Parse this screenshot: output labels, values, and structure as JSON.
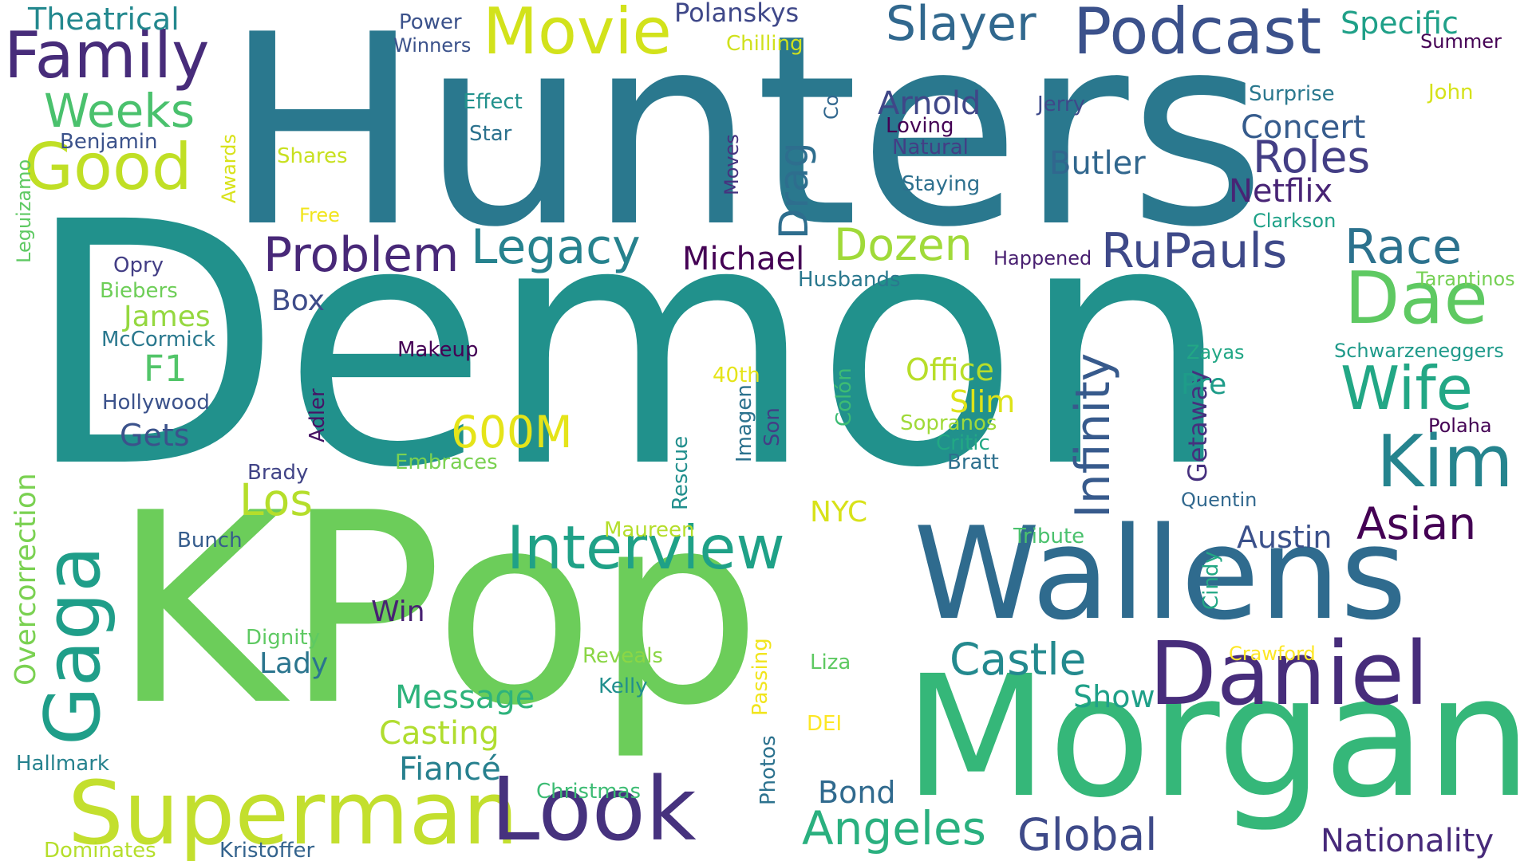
{
  "words": [
    {
      "text": "Hunters",
      "color": "#2a788e"
    },
    {
      "text": "Demon",
      "color": "#21918c"
    },
    {
      "text": "KPop",
      "color": "#6ccd5a"
    },
    {
      "text": "Morgan",
      "color": "#35b779"
    },
    {
      "text": "Wallens",
      "color": "#2f6b8e"
    },
    {
      "text": "Daniel",
      "color": "#472d7b"
    },
    {
      "text": "Superman",
      "color": "#c3df2e"
    },
    {
      "text": "Look",
      "color": "#46327e"
    },
    {
      "text": "Podcast",
      "color": "#3b518b"
    },
    {
      "text": "Movie",
      "color": "#d2e21b"
    },
    {
      "text": "Family",
      "color": "#472c7a"
    },
    {
      "text": "Good",
      "color": "#c0df25"
    },
    {
      "text": "Slayer",
      "color": "#31688e"
    },
    {
      "text": "Kim",
      "color": "#25848e"
    },
    {
      "text": "Dae",
      "color": "#5ec962"
    },
    {
      "text": "Interview",
      "color": "#1fa187"
    },
    {
      "text": "Legacy",
      "color": "#26828e"
    },
    {
      "text": "Problem",
      "color": "#482878"
    },
    {
      "text": "RuPauls",
      "color": "#3e4989"
    },
    {
      "text": "Race",
      "color": "#2c728e"
    },
    {
      "text": "Infinity",
      "color": "#375a8c"
    },
    {
      "text": "Wife",
      "color": "#22a785"
    },
    {
      "text": "Weeks",
      "color": "#4ac16d"
    },
    {
      "text": "Gaga",
      "color": "#1f9e89"
    },
    {
      "text": "Dozen",
      "color": "#a0da39"
    },
    {
      "text": "Asian",
      "color": "#440154"
    },
    {
      "text": "Castle",
      "color": "#23898e"
    },
    {
      "text": "Roles",
      "color": "#433e85"
    },
    {
      "text": "Angeles",
      "color": "#2ab07f"
    },
    {
      "text": "Global",
      "color": "#3e4a89"
    },
    {
      "text": "Los",
      "color": "#b5de2b"
    },
    {
      "text": "Drag",
      "color": "#2e6e8e"
    },
    {
      "text": "600M",
      "color": "#e5e419"
    },
    {
      "text": "Netflix",
      "color": "#482475"
    },
    {
      "text": "Michael",
      "color": "#440154"
    },
    {
      "text": "Specific",
      "color": "#1fa088"
    },
    {
      "text": "Concert",
      "color": "#365c8d"
    },
    {
      "text": "Butler",
      "color": "#31678e"
    },
    {
      "text": "Arnold",
      "color": "#3f4788"
    },
    {
      "text": "Nationality",
      "color": "#472a7a"
    },
    {
      "text": "Theatrical",
      "color": "#23888e"
    },
    {
      "text": "Message",
      "color": "#2eb37c"
    },
    {
      "text": "Casting",
      "color": "#b0dd2f"
    },
    {
      "text": "Fiancé",
      "color": "#27808e"
    },
    {
      "text": "Austin",
      "color": "#3b518b"
    },
    {
      "text": "Overcorrection",
      "color": "#7ad151"
    },
    {
      "text": "Getaway",
      "color": "#46307e"
    },
    {
      "text": "Bond",
      "color": "#306a8e"
    },
    {
      "text": "Office",
      "color": "#b8de29"
    },
    {
      "text": "Show",
      "color": "#1fa088"
    },
    {
      "text": "Gets",
      "color": "#3b528b"
    },
    {
      "text": "James",
      "color": "#95d840"
    },
    {
      "text": "F1",
      "color": "#52c569"
    },
    {
      "text": "Slim",
      "color": "#dde318"
    },
    {
      "text": "Box",
      "color": "#3e4c8a"
    },
    {
      "text": "Lady",
      "color": "#2b758e"
    },
    {
      "text": "Win",
      "color": "#482173"
    },
    {
      "text": "Pre",
      "color": "#1e9c89"
    },
    {
      "text": "NYC",
      "color": "#d8e219"
    },
    {
      "text": "Polanskys",
      "color": "#3f4889"
    },
    {
      "text": "Loving",
      "color": "#440154"
    },
    {
      "text": "Natural",
      "color": "#433e85"
    },
    {
      "text": "Jerry",
      "color": "#3e4989"
    },
    {
      "text": "Surprise",
      "color": "#2a788e"
    },
    {
      "text": "John",
      "color": "#d5e21a"
    },
    {
      "text": "Summer",
      "color": "#440154"
    },
    {
      "text": "Power",
      "color": "#3b528b"
    },
    {
      "text": "Winners",
      "color": "#3b528b"
    },
    {
      "text": "Chilling",
      "color": "#d0e11c"
    },
    {
      "text": "Effect",
      "color": "#21918c"
    },
    {
      "text": "Star",
      "color": "#2c728e"
    },
    {
      "text": "Benjamin",
      "color": "#3b528b"
    },
    {
      "text": "Shares",
      "color": "#c8e020"
    },
    {
      "text": "Free",
      "color": "#f1e51d"
    },
    {
      "text": "Awards",
      "color": "#d8e219"
    },
    {
      "text": "Leguizamo",
      "color": "#5ec962"
    },
    {
      "text": "Co",
      "color": "#31678e"
    },
    {
      "text": "Moves",
      "color": "#46337f"
    },
    {
      "text": "Staying",
      "color": "#2d708e"
    },
    {
      "text": "Clarkson",
      "color": "#1fa188"
    },
    {
      "text": "Happened",
      "color": "#481f70"
    },
    {
      "text": "Husbands",
      "color": "#2a788e"
    },
    {
      "text": "Tarantinos",
      "color": "#75d054"
    },
    {
      "text": "Schwarzeneggers",
      "color": "#1f9a8a"
    },
    {
      "text": "Zayas",
      "color": "#22a785"
    },
    {
      "text": "Polaha",
      "color": "#440154"
    },
    {
      "text": "Opry",
      "color": "#433e85"
    },
    {
      "text": "Biebers",
      "color": "#6ece58"
    },
    {
      "text": "McCormick",
      "color": "#2a788e"
    },
    {
      "text": "Hollywood",
      "color": "#3b528b"
    },
    {
      "text": "Makeup",
      "color": "#440154"
    },
    {
      "text": "40th",
      "color": "#e5e419"
    },
    {
      "text": "Adler",
      "color": "#471365"
    },
    {
      "text": "Imagen",
      "color": "#2c728e"
    },
    {
      "text": "Son",
      "color": "#433e85"
    },
    {
      "text": "Colón",
      "color": "#3dbc74"
    },
    {
      "text": "Rescue",
      "color": "#218f8d"
    },
    {
      "text": "Sopranos",
      "color": "#a0da39"
    },
    {
      "text": "Critic",
      "color": "#22a884"
    },
    {
      "text": "Bratt",
      "color": "#2d708e"
    },
    {
      "text": "Brady",
      "color": "#414487"
    },
    {
      "text": "Embraces",
      "color": "#7ad151"
    },
    {
      "text": "Quentin",
      "color": "#31688e"
    },
    {
      "text": "Maureen",
      "color": "#b5de2b"
    },
    {
      "text": "Tribute",
      "color": "#4ac16d"
    },
    {
      "text": "Bunch",
      "color": "#365d8d"
    },
    {
      "text": "Cindy",
      "color": "#22a884"
    },
    {
      "text": "Dignity",
      "color": "#5ec962"
    },
    {
      "text": "Reveals",
      "color": "#8bd646"
    },
    {
      "text": "Passing",
      "color": "#f1e51d"
    },
    {
      "text": "Liza",
      "color": "#5ec962"
    },
    {
      "text": "Crawford",
      "color": "#fde725"
    },
    {
      "text": "Kelly",
      "color": "#218f8d"
    },
    {
      "text": "DEI",
      "color": "#fde725"
    },
    {
      "text": "Photos",
      "color": "#2c728e"
    },
    {
      "text": "Hallmark",
      "color": "#26828e"
    },
    {
      "text": "Christmas",
      "color": "#3dbc74"
    },
    {
      "text": "Dominates",
      "color": "#b5de2b"
    },
    {
      "text": "Kristoffer",
      "color": "#33638d"
    }
  ]
}
